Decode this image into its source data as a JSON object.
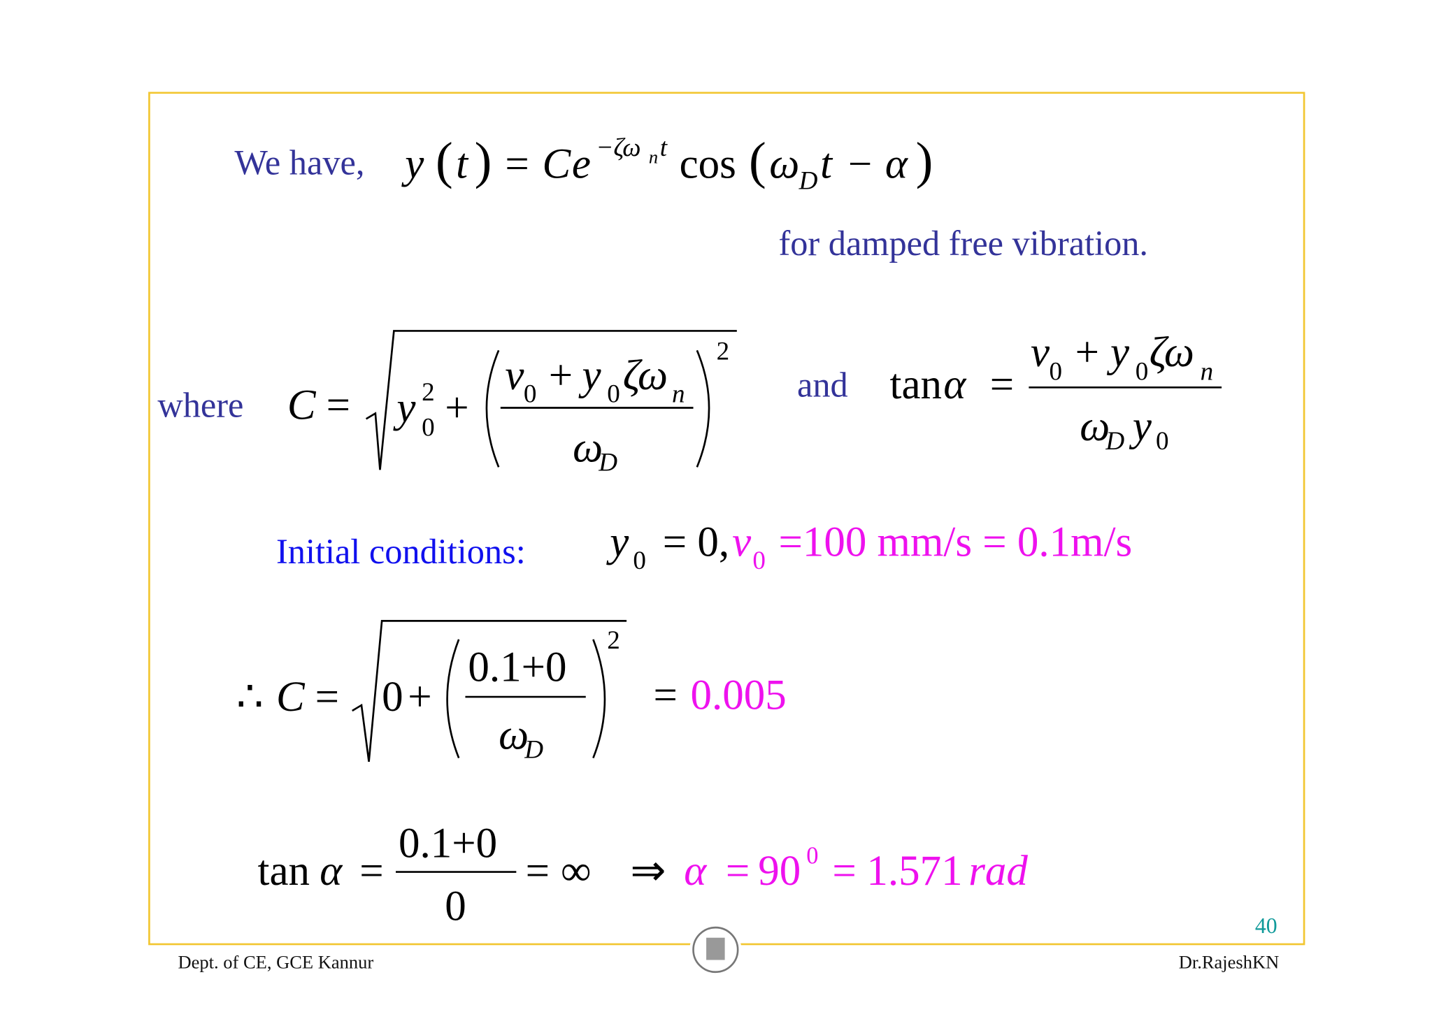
{
  "slide": {
    "intro": "We have,",
    "equation_1": [
      "y",
      "(",
      "t",
      ")",
      "=",
      "C",
      "e",
      "−ζω",
      "n",
      "t",
      "cos",
      "(",
      "ω",
      "D",
      "t",
      "−",
      "α",
      ")"
    ],
    "note": "for damped free vibration.",
    "where": "where",
    "c_formula": [
      "C",
      "=",
      "y",
      "2",
      "0",
      "+",
      "v",
      "0",
      "+",
      "y",
      "0",
      "ζω",
      "n",
      "ω",
      "D",
      "2"
    ],
    "and": "and",
    "tan_formula": [
      "tan",
      "α",
      "=",
      "v",
      "0",
      "+",
      "y",
      "0",
      "ζω",
      "n",
      "ω",
      "D",
      "y",
      "0"
    ],
    "initial_label": "Initial conditions:",
    "initial_values": [
      "y",
      "0",
      "= 0,",
      "v",
      "0",
      "=100 mm/s = 0.1m/s"
    ],
    "c_result": [
      "∴",
      "C",
      "=",
      "0",
      "+",
      "0.1+0",
      "ω",
      "D",
      "2",
      "=",
      "0.005"
    ],
    "alpha_result": [
      "tan",
      "α",
      "=",
      "0.1+0",
      "0",
      "=",
      "∞",
      "⇒",
      "α",
      "=",
      "90",
      "0",
      "=",
      "1.571",
      "rad"
    ],
    "page_number": "40"
  },
  "footer": {
    "left": "Dept. of CE, GCE Kannur",
    "right": "Dr.RajeshKN"
  }
}
